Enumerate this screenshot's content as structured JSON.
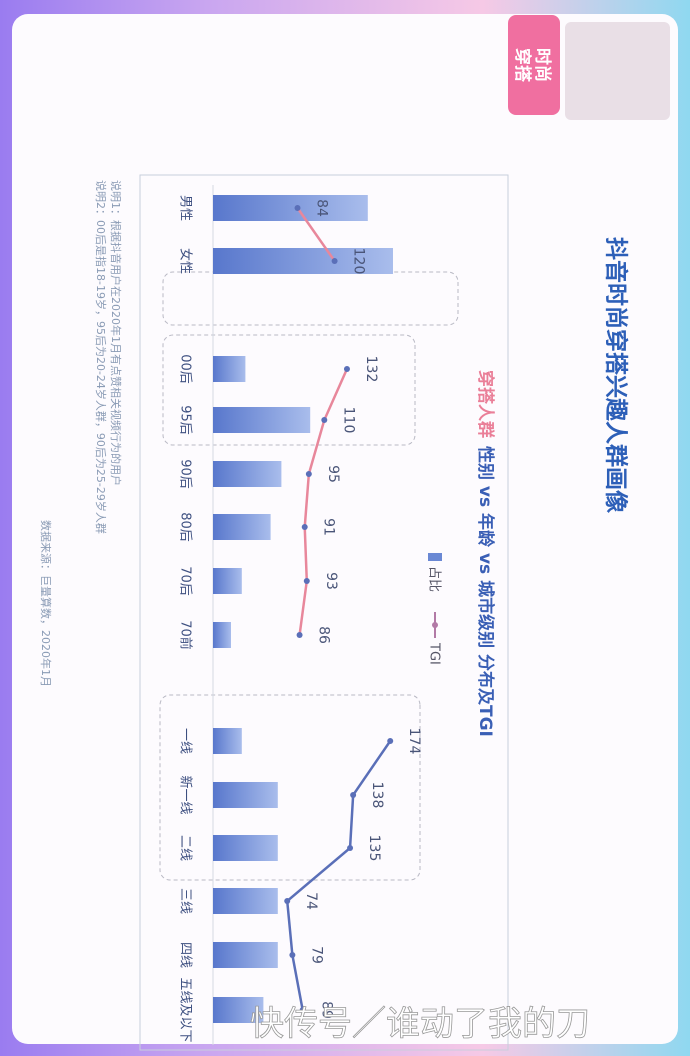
{
  "header": {
    "title": "抖音时尚穿搭兴趣人群画像",
    "badge": [
      "时尚",
      "穿搭"
    ]
  },
  "chart_data": {
    "type": "bar",
    "title_highlight": "穿搭人群",
    "title": "性别 vs 年龄 vs 城市级别 分布及TGI",
    "series": [
      {
        "name": "占比",
        "color": "#6a88d4"
      },
      {
        "name": "TGI",
        "color": "#b27aa6"
      }
    ],
    "groups": [
      {
        "categories": [
          "男性",
          "女性"
        ],
        "values": [
          43,
          50
        ],
        "tgi": [
          84,
          120
        ],
        "line_color": "#e8879b"
      },
      {
        "categories": [
          "00后",
          "95后",
          "90后",
          "80后",
          "70后",
          "70前"
        ],
        "values": [
          9,
          27,
          19,
          16,
          8,
          5
        ],
        "tgi": [
          132,
          110,
          95,
          91,
          93,
          86
        ],
        "line_color": "#e8879b"
      },
      {
        "categories": [
          "一线",
          "新一线",
          "二线",
          "三线",
          "四线",
          "五线及以下"
        ],
        "values": [
          8,
          18,
          18,
          18,
          18,
          14
        ],
        "tgi": [
          174,
          138,
          135,
          74,
          79,
          89
        ],
        "line_color": "#5a6fb8"
      }
    ],
    "notes": [
      "说明1：根据抖音用户在2020年1月有点赞相关视频行为的用户",
      "说明2：00后是指18-19岁，95后为20-24岁人群，90后为25-29岁人群"
    ],
    "source": "数据来源：巨量算数，2020年1月"
  },
  "watermark": "快传号／谁动了我的刀"
}
